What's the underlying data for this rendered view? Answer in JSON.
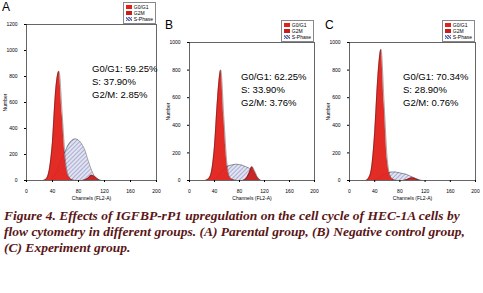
{
  "chart_data": [
    {
      "type": "area",
      "title": "A",
      "xlabel": "Channels (FL2-A)",
      "ylabel": "Number",
      "x": [
        20,
        25,
        30,
        35,
        40,
        45,
        50,
        55,
        60,
        65,
        70,
        75,
        80,
        85,
        90,
        95,
        100,
        105,
        110,
        115,
        120
      ],
      "xlim": [
        0,
        200
      ],
      "xticks": [
        0,
        40,
        80,
        120,
        160,
        200
      ],
      "ylim": [
        0,
        1200
      ],
      "yticks": [
        0,
        200,
        400,
        600,
        800,
        1000,
        1200
      ],
      "grid": false,
      "legend": "top-right",
      "series": [
        {
          "name": "S-Phase",
          "color": "#6b74b0",
          "values": [
            0,
            0,
            0,
            0,
            20,
            60,
            120,
            180,
            230,
            280,
            310,
            320,
            310,
            280,
            230,
            150,
            80,
            30,
            10,
            0,
            0
          ]
        },
        {
          "name": "G0/G1",
          "color": "#e3211b",
          "values": [
            0,
            0,
            10,
            80,
            300,
            700,
            840,
            500,
            150,
            30,
            5,
            0,
            0,
            0,
            0,
            0,
            0,
            0,
            0,
            0,
            0
          ]
        },
        {
          "name": "G2M",
          "color": "#c81d1d",
          "values": [
            0,
            0,
            0,
            0,
            0,
            0,
            0,
            0,
            0,
            0,
            0,
            0,
            0,
            0,
            5,
            20,
            40,
            30,
            10,
            0,
            0
          ]
        }
      ],
      "annotations": [
        "G0/G1: 59.25%",
        "S: 37.90%",
        "G2/M: 2.85%"
      ]
    },
    {
      "type": "area",
      "title": "B",
      "xlabel": "Channels (FL2-A)",
      "ylabel": "Number",
      "x": [
        20,
        25,
        30,
        35,
        40,
        45,
        50,
        55,
        60,
        65,
        70,
        75,
        80,
        85,
        90,
        95,
        100,
        105,
        110,
        115,
        120
      ],
      "xlim": [
        0,
        200
      ],
      "xticks": [
        0,
        40,
        80,
        120,
        160,
        200
      ],
      "ylim": [
        0,
        1000
      ],
      "yticks": [
        0,
        200,
        400,
        600,
        800,
        1000
      ],
      "grid": false,
      "legend": "top-right",
      "series": [
        {
          "name": "S-Phase",
          "color": "#6b74b0",
          "values": [
            0,
            0,
            0,
            0,
            10,
            30,
            60,
            80,
            100,
            110,
            115,
            118,
            115,
            110,
            100,
            90,
            70,
            40,
            15,
            0,
            0
          ]
        },
        {
          "name": "G0/G1",
          "color": "#e3211b",
          "values": [
            0,
            0,
            10,
            60,
            250,
            600,
            800,
            450,
            120,
            20,
            5,
            0,
            0,
            0,
            0,
            0,
            0,
            0,
            0,
            0,
            0
          ]
        },
        {
          "name": "G2M",
          "color": "#c81d1d",
          "values": [
            0,
            0,
            0,
            0,
            0,
            0,
            0,
            0,
            0,
            0,
            0,
            0,
            0,
            0,
            10,
            50,
            100,
            60,
            15,
            0,
            0
          ]
        }
      ],
      "annotations": [
        "G0/G1: 62.25%",
        "S: 33.90%",
        "G2/M: 3.76%"
      ]
    },
    {
      "type": "area",
      "title": "C",
      "xlabel": "Channels (FL2-A)",
      "ylabel": "Number",
      "x": [
        20,
        25,
        30,
        35,
        40,
        45,
        50,
        55,
        60,
        65,
        70,
        75,
        80,
        85,
        90,
        95,
        100,
        105,
        110,
        115,
        120
      ],
      "xlim": [
        0,
        200
      ],
      "xticks": [
        0,
        40,
        80,
        120,
        160,
        200
      ],
      "ylim": [
        0,
        1000
      ],
      "yticks": [
        0,
        200,
        400,
        600,
        800,
        1000
      ],
      "grid": false,
      "legend": "top-right",
      "series": [
        {
          "name": "S-Phase",
          "color": "#6b74b0",
          "values": [
            0,
            0,
            0,
            0,
            5,
            15,
            30,
            45,
            55,
            60,
            62,
            60,
            55,
            50,
            45,
            35,
            25,
            15,
            5,
            0,
            0
          ]
        },
        {
          "name": "G0/G1",
          "color": "#e3211b",
          "values": [
            0,
            0,
            15,
            90,
            350,
            750,
            950,
            550,
            150,
            30,
            5,
            0,
            0,
            0,
            0,
            0,
            0,
            0,
            0,
            0,
            0
          ]
        },
        {
          "name": "G2M",
          "color": "#c81d1d",
          "values": [
            0,
            0,
            0,
            0,
            0,
            0,
            0,
            0,
            0,
            0,
            0,
            0,
            0,
            0,
            5,
            15,
            20,
            12,
            4,
            0,
            0
          ]
        }
      ],
      "annotations": [
        "G0/G1: 70.34%",
        "S: 28.90%",
        "G2/M: 0.76%"
      ]
    }
  ],
  "caption": "Figure 4. Effects of IGFBP-rP1 upregulation on the cell cycle of HEC-1A cells by flow cytometry in different groups. (A) Parental group, (B) Negative control group, (C) Experiment group."
}
